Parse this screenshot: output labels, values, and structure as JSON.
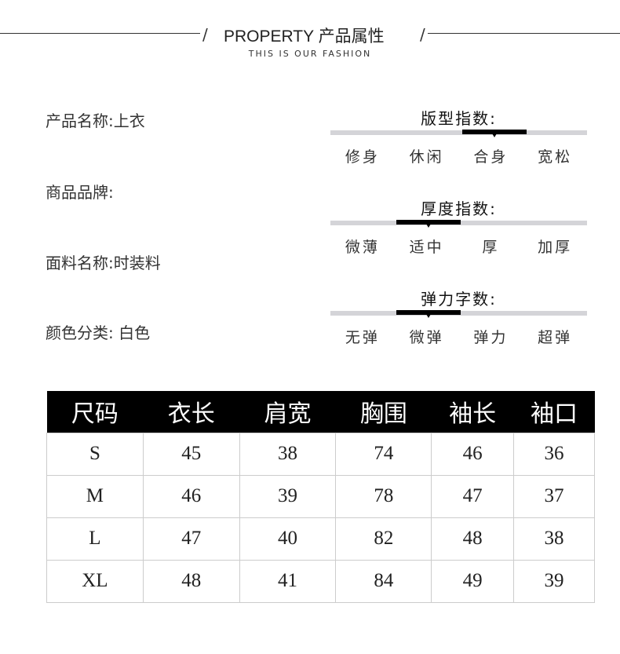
{
  "header": {
    "title": "PROPERTY 产品属性",
    "subtitle": "THIS IS OUR FASHION"
  },
  "properties": [
    {
      "text": "产品名称:上衣"
    },
    {
      "text": "商品品牌:"
    },
    {
      "text": "面料名称:时装料"
    },
    {
      "text": "颜色分类: 白色"
    }
  ],
  "gauges": [
    {
      "title": "版型指数:",
      "options": [
        "修身",
        "休闲",
        "合身",
        "宽松"
      ],
      "selected": "合身",
      "selected_index": 2
    },
    {
      "title": "厚度指数:",
      "options": [
        "微薄",
        "适中",
        "厚",
        "加厚"
      ],
      "selected": "适中",
      "selected_index": 1
    },
    {
      "title": "弹力字数:",
      "options": [
        "无弹",
        "微弹",
        "弹力",
        "超弹"
      ],
      "selected": "微弹",
      "selected_index": 1
    }
  ],
  "size_table": {
    "headers": [
      "尺码",
      "衣长",
      "肩宽",
      "胸围",
      "袖长",
      "袖口"
    ],
    "rows": [
      [
        "S",
        "45",
        "38",
        "74",
        "46",
        "36"
      ],
      [
        "M",
        "46",
        "39",
        "78",
        "47",
        "37"
      ],
      [
        "L",
        "47",
        "40",
        "82",
        "48",
        "38"
      ],
      [
        "XL",
        "48",
        "41",
        "84",
        "49",
        "39"
      ]
    ]
  }
}
